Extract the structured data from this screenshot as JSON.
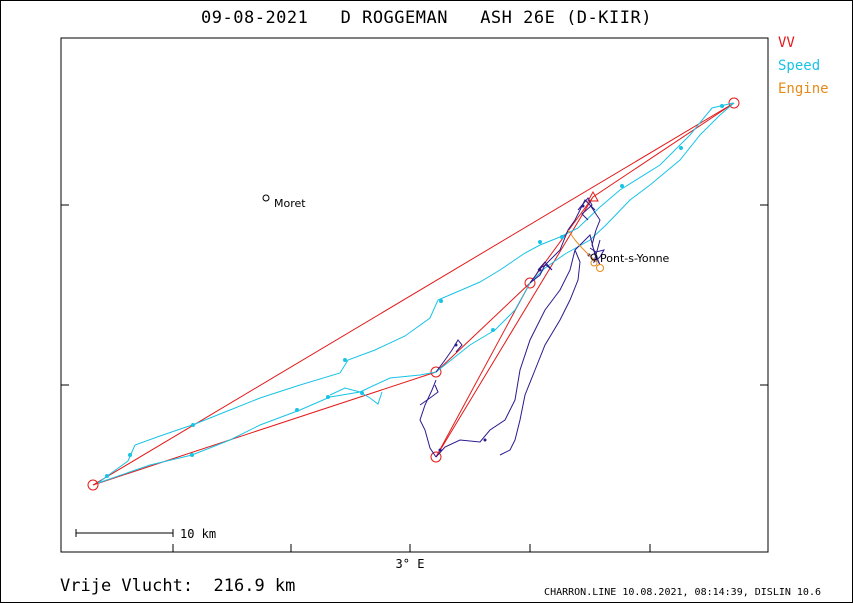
{
  "header": {
    "date": "09-08-2021",
    "pilot": "D ROGGEMAN",
    "glider": "ASH 26E (D-KIIR)"
  },
  "legend": {
    "vv": "VV",
    "speed": "Speed",
    "engine": "Engine"
  },
  "colors": {
    "vv": "#e41a1a",
    "speed": "#19c3e6",
    "engine": "#e68a19",
    "track": "#2b1a8c"
  },
  "map": {
    "places": [
      {
        "name": "Moret"
      },
      {
        "name": "Pont-s-Yonne"
      }
    ],
    "x_tick_label": "3° E",
    "scale_label": "10 km"
  },
  "footer": {
    "distance": "Vrije Vlucht:  216.9 km",
    "info": "CHARRON.LINE 10.08.2021, 08:14:39, DISLIN 10.6"
  }
}
